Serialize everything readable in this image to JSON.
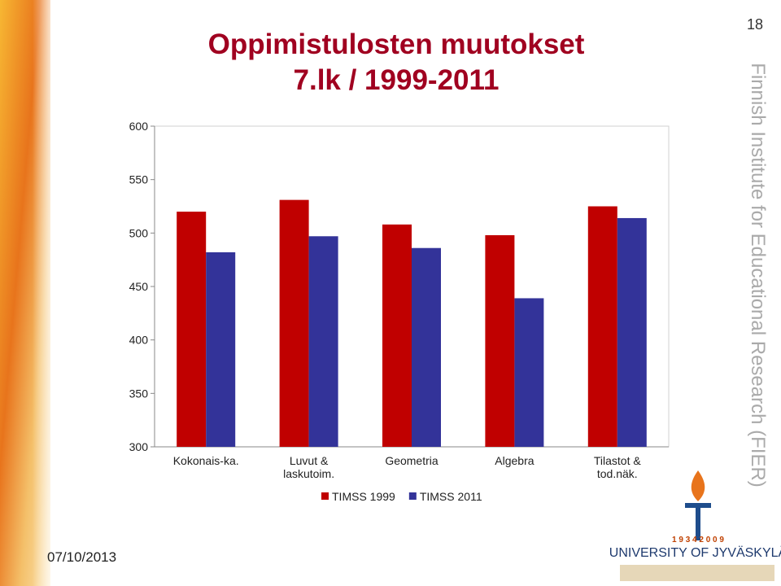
{
  "chart_data": {
    "type": "bar",
    "title": "Oppimistulosten muutokset",
    "subtitle": "7.lk / 1999-2011",
    "categories": [
      "Kokonais-ka.",
      "Luvut &\nlaskutoim.",
      "Geometria",
      "Algebra",
      "Tilastot &\ntod.näk."
    ],
    "series": [
      {
        "name": "TIMSS 1999",
        "color": "#c00000",
        "values": [
          520,
          531,
          508,
          498,
          525
        ]
      },
      {
        "name": "TIMSS 2011",
        "color": "#333399",
        "values": [
          482,
          497,
          486,
          439,
          514
        ]
      }
    ],
    "ylim": [
      300,
      600
    ],
    "yticks": [
      300,
      350,
      400,
      450,
      500,
      550,
      600
    ],
    "grid": false,
    "legend": "bottom"
  },
  "slide": {
    "page_number": "18",
    "date": "07/10/2013",
    "side_text": "Finnish Institute for Educational Research (FIER)",
    "logo": {
      "years": "1 9 3 4     2 0 0 9",
      "name": "UNIVERSITY OF JYVÄSKYLÄ"
    }
  }
}
